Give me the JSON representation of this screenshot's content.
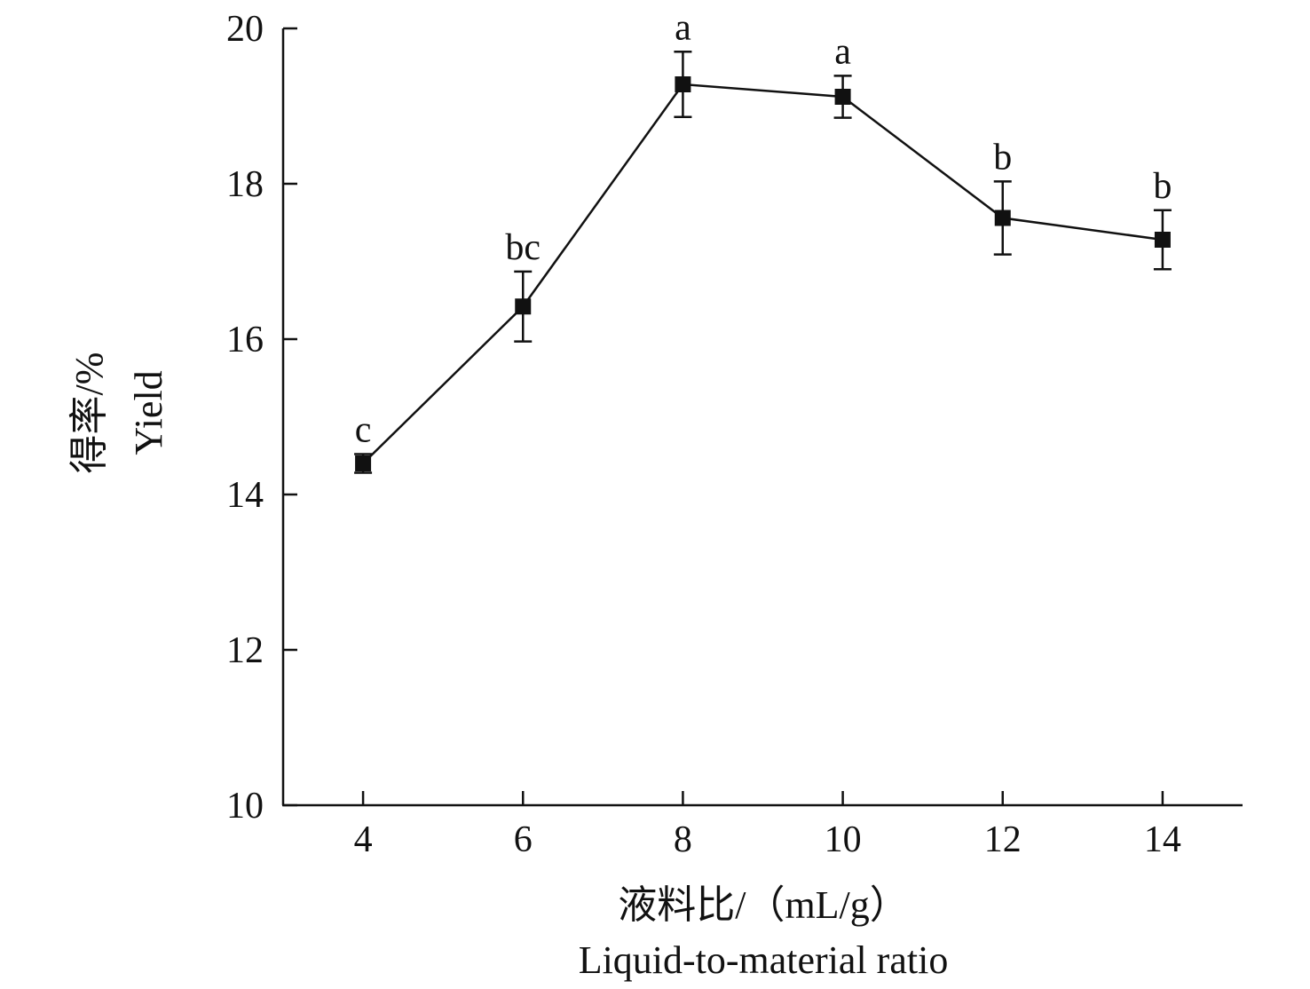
{
  "chart_data": {
    "type": "line",
    "title": "",
    "xlabel_zh": "液料比/（mL/g）",
    "xlabel_en": "Liquid-to-material ratio",
    "ylabel_zh": "得率/%",
    "ylabel_en": "Yield",
    "xlim": [
      3,
      15
    ],
    "ylim": [
      10,
      20
    ],
    "x_ticks": [
      4,
      6,
      8,
      10,
      12,
      14
    ],
    "y_ticks": [
      10,
      12,
      14,
      16,
      18,
      20
    ],
    "grid": false,
    "legend": "none",
    "series": [
      {
        "x": [
          4,
          6,
          8,
          10,
          12,
          14
        ],
        "y": [
          14.4,
          16.42,
          19.28,
          19.12,
          17.56,
          17.28
        ],
        "error": [
          0.12,
          0.45,
          0.42,
          0.27,
          0.47,
          0.38
        ],
        "significance": [
          "c",
          "bc",
          "a",
          "a",
          "b",
          "b"
        ],
        "marker": "square",
        "color": "#111111"
      }
    ]
  }
}
